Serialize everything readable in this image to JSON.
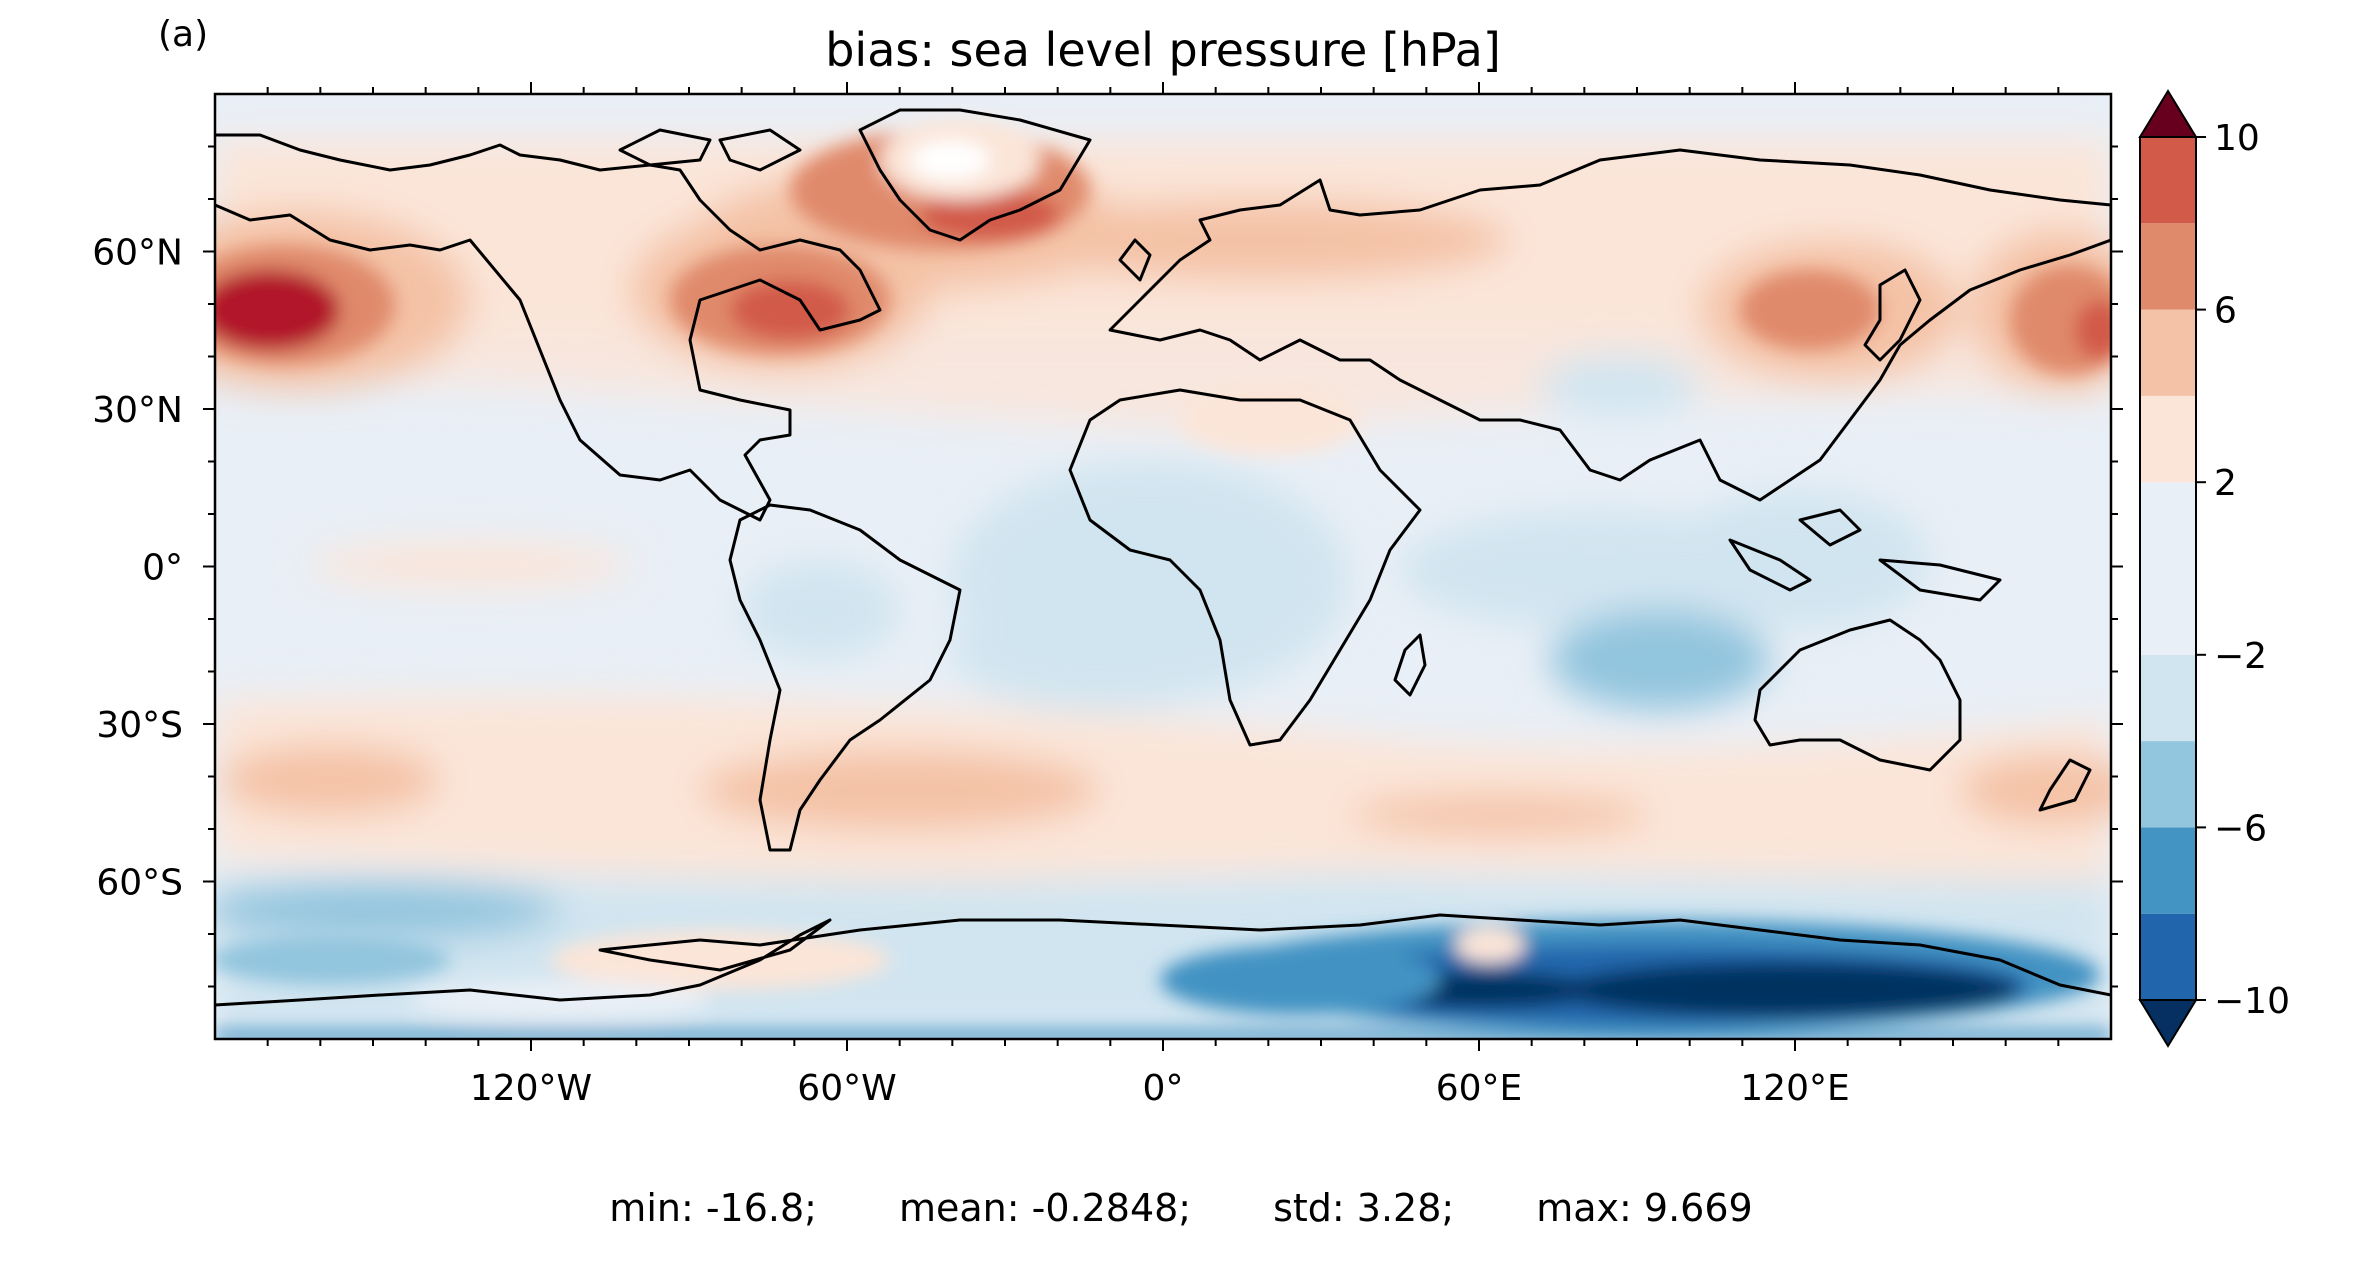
{
  "panel_label": "(a)",
  "title": "bias: sea level pressure [hPa]",
  "x_ticks": [
    {
      "lon": -120,
      "label": "120°W"
    },
    {
      "lon": -60,
      "label": "60°W"
    },
    {
      "lon": 0,
      "label": "0°"
    },
    {
      "lon": 60,
      "label": "60°E"
    },
    {
      "lon": 120,
      "label": "120°E"
    }
  ],
  "y_ticks": [
    {
      "lat": 60,
      "label": "60°N"
    },
    {
      "lat": 30,
      "label": "30°N"
    },
    {
      "lat": 0,
      "label": "0°"
    },
    {
      "lat": -30,
      "label": "30°S"
    },
    {
      "lat": -60,
      "label": "60°S"
    }
  ],
  "extent": {
    "lon": [
      -180,
      180
    ],
    "lat": [
      -90,
      90
    ]
  },
  "colorbar": {
    "levels": [
      -10,
      -8,
      -6,
      -4,
      -2,
      2,
      4,
      6,
      8,
      10
    ],
    "tick_labels": [
      {
        "value": 10,
        "label": "10"
      },
      {
        "value": 6,
        "label": "6"
      },
      {
        "value": 2,
        "label": "2"
      },
      {
        "value": -2,
        "label": "−2"
      },
      {
        "value": -6,
        "label": "−6"
      },
      {
        "value": -10,
        "label": "−10"
      }
    ],
    "colors": [
      "#053061",
      "#2166ac",
      "#4393c3",
      "#92c5de",
      "#d1e5f0",
      "#e9eff6",
      "#fbe5d8",
      "#f4c2a6",
      "#e08a6c",
      "#d25a48",
      "#b2182b",
      "#67001f"
    ],
    "extend": "both"
  },
  "stats": {
    "min": "min: -16.8;",
    "mean": "mean: -0.2848;",
    "std": "std: 3.28;",
    "max": "max: 9.669"
  }
}
